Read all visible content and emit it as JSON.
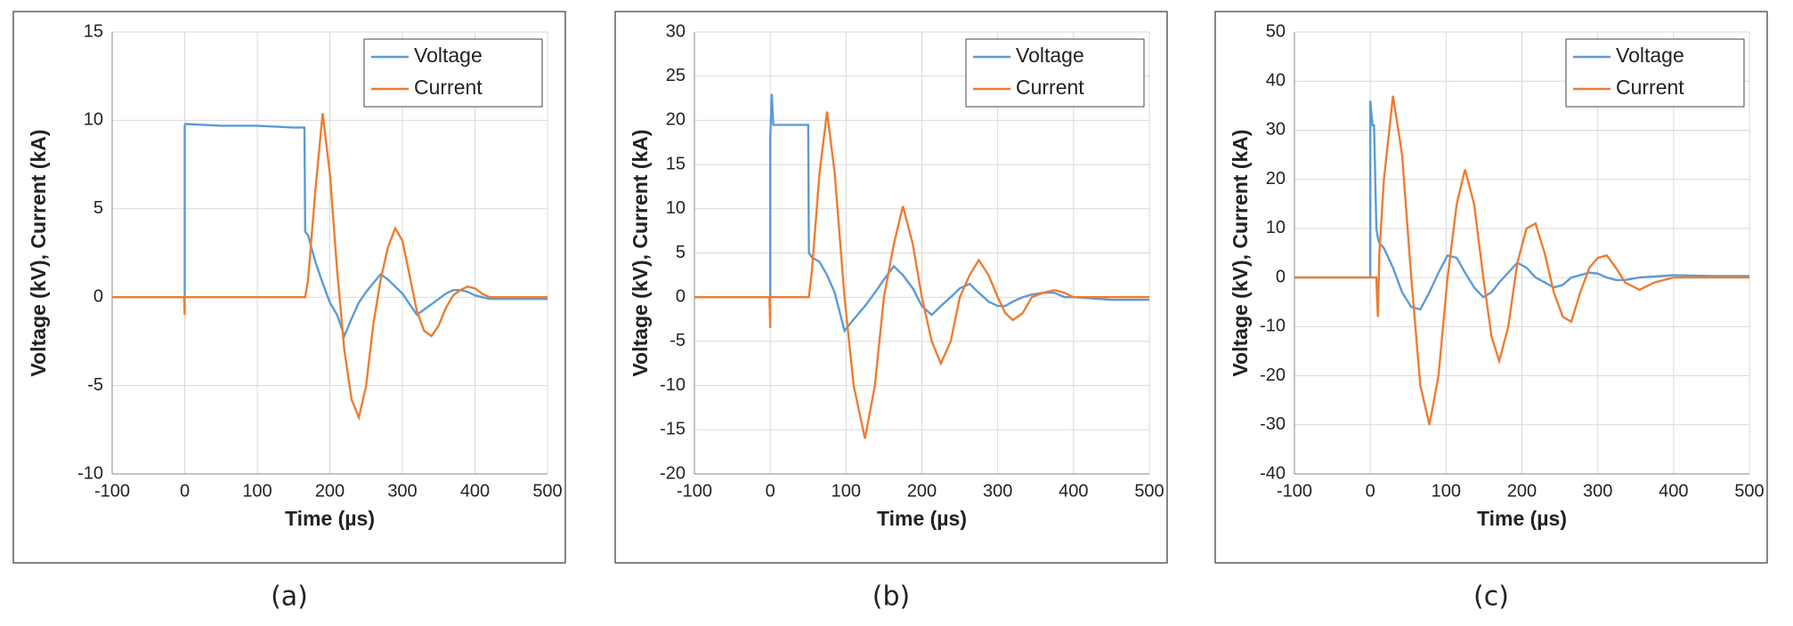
{
  "chart_data": [
    {
      "type": "line",
      "caption": "(a)",
      "xlabel": "Time (µs)",
      "ylabel": "Voltage (kV),  Current (kA)",
      "xlim": [
        -100,
        500
      ],
      "xticks": [
        -100,
        0,
        100,
        200,
        300,
        400,
        500
      ],
      "ylim": [
        -10,
        15
      ],
      "yticks": [
        -10,
        -5,
        0,
        5,
        10,
        15
      ],
      "grid": true,
      "legend": "upper right",
      "x": [
        -100,
        -50,
        -1,
        0,
        0,
        1,
        50,
        100,
        150,
        165,
        166,
        170,
        180,
        190,
        200,
        210,
        220,
        230,
        240,
        250,
        260,
        270,
        280,
        290,
        300,
        310,
        320,
        330,
        340,
        350,
        360,
        370,
        380,
        390,
        400,
        410,
        420,
        450,
        500
      ],
      "series": [
        {
          "name": "Voltage",
          "color": "#5b9bd5",
          "values": [
            0,
            0,
            0,
            0,
            9.7,
            9.8,
            9.7,
            9.7,
            9.6,
            9.6,
            3.7,
            3.5,
            2,
            0.8,
            -0.3,
            -1,
            -2.2,
            -1.2,
            -0.3,
            0.3,
            0.8,
            1.3,
            1,
            0.6,
            0.2,
            -0.4,
            -1,
            -0.7,
            -0.4,
            -0.1,
            0.2,
            0.4,
            0.4,
            0.3,
            0.1,
            0,
            -0.1,
            -0.1,
            -0.1
          ]
        },
        {
          "name": "Current",
          "color": "#ed7d31",
          "values": [
            0,
            0,
            0,
            -1,
            0,
            0,
            0,
            0,
            0,
            0,
            0,
            1,
            6,
            10.4,
            7,
            1.5,
            -3,
            -5.8,
            -6.8,
            -5,
            -1.5,
            1,
            2.8,
            3.9,
            3.2,
            1.2,
            -0.8,
            -1.9,
            -2.2,
            -1.6,
            -0.6,
            0.1,
            0.4,
            0.6,
            0.5,
            0.2,
            0,
            0,
            0
          ]
        }
      ]
    },
    {
      "type": "line",
      "caption": "(b)",
      "xlabel": "Time (µs)",
      "ylabel": "Voltage (kV),  Current (kA)",
      "xlim": [
        -100,
        500
      ],
      "xticks": [
        -100,
        0,
        100,
        200,
        300,
        400,
        500
      ],
      "ylim": [
        -20,
        30
      ],
      "yticks": [
        -20,
        -15,
        -10,
        -5,
        0,
        5,
        10,
        15,
        20,
        25,
        30
      ],
      "grid": true,
      "legend": "upper right",
      "x": [
        -100,
        -50,
        -1,
        0,
        0,
        2,
        4,
        50,
        51,
        55,
        65,
        75,
        85,
        98,
        110,
        125,
        138,
        150,
        163,
        175,
        188,
        200,
        213,
        225,
        238,
        250,
        263,
        275,
        288,
        300,
        310,
        320,
        333,
        345,
        360,
        375,
        388,
        400,
        450,
        500
      ],
      "series": [
        {
          "name": "Voltage",
          "color": "#5b9bd5",
          "values": [
            0,
            0,
            0,
            0,
            18,
            23,
            19.5,
            19.5,
            5,
            4.5,
            4,
            2.5,
            0.5,
            -3.8,
            -2.5,
            -1,
            0.5,
            2,
            3.5,
            2.5,
            1,
            -1,
            -2,
            -1,
            0,
            1,
            1.5,
            0.5,
            -0.5,
            -1,
            -1,
            -0.5,
            0,
            0.3,
            0.5,
            0.5,
            0,
            0,
            -0.3,
            -0.3
          ]
        },
        {
          "name": "Current",
          "color": "#ed7d31",
          "values": [
            0,
            0,
            0,
            -3.5,
            0,
            0,
            0,
            0,
            0,
            3,
            14,
            21,
            14,
            0,
            -10,
            -16,
            -10,
            0,
            6,
            10.3,
            6,
            0,
            -5,
            -7.5,
            -5,
            0,
            2.5,
            4.2,
            2.5,
            0,
            -1.8,
            -2.6,
            -1.8,
            0,
            0.5,
            0.8,
            0.5,
            0,
            0,
            0
          ]
        }
      ]
    },
    {
      "type": "line",
      "caption": "(c)",
      "xlabel": "Time (µs)",
      "ylabel": "Voltage (kV),  Current (kA)",
      "xlim": [
        -100,
        500
      ],
      "xticks": [
        -100,
        0,
        100,
        200,
        300,
        400,
        500
      ],
      "ylim": [
        -40,
        50
      ],
      "yticks": [
        -40,
        -30,
        -20,
        -10,
        0,
        10,
        20,
        30,
        40,
        50
      ],
      "grid": true,
      "legend": "upper right",
      "x": [
        -100,
        -50,
        -1,
        0,
        0,
        3,
        5,
        8,
        10,
        12,
        18,
        30,
        42,
        54,
        66,
        78,
        90,
        102,
        114,
        125,
        137,
        149,
        160,
        170,
        182,
        194,
        206,
        218,
        230,
        242,
        254,
        265,
        277,
        289,
        300,
        312,
        324,
        336,
        355,
        375,
        400,
        450,
        500
      ],
      "series": [
        {
          "name": "Voltage",
          "color": "#5b9bd5",
          "values": [
            0,
            0,
            0,
            0,
            36,
            31,
            31,
            10,
            8,
            7,
            6,
            2,
            -3,
            -6,
            -6.5,
            -3,
            1,
            4.5,
            4,
            1,
            -2,
            -4,
            -3,
            -1,
            1,
            3,
            2,
            0,
            -1,
            -2,
            -1.5,
            0,
            0.5,
            1,
            0.8,
            0,
            -0.5,
            -0.5,
            0,
            0.2,
            0.5,
            0.3,
            0.3
          ]
        },
        {
          "name": "Current",
          "color": "#ed7d31",
          "values": [
            0,
            0,
            0,
            0,
            0,
            0,
            0,
            0,
            -8,
            5,
            20,
            37,
            25,
            0,
            -22,
            -30,
            -20,
            0,
            15,
            22,
            15,
            0,
            -12,
            -17,
            -10,
            3,
            10,
            11,
            5,
            -3,
            -8,
            -9,
            -3,
            2,
            4,
            4.5,
            2,
            -1,
            -2.5,
            -1,
            0,
            0,
            0
          ]
        }
      ]
    }
  ]
}
